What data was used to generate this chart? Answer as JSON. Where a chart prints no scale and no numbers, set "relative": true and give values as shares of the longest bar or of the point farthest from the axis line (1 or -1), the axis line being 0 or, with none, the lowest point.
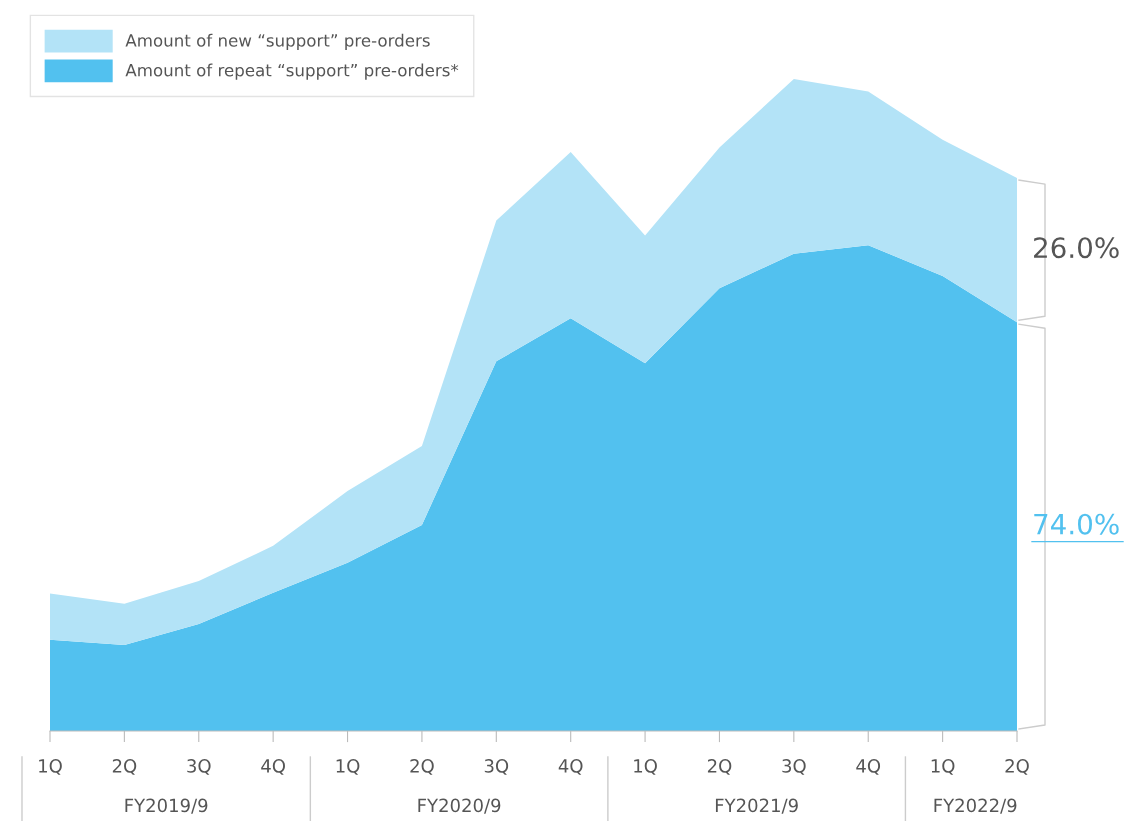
{
  "chart_data": {
    "type": "area",
    "stacked": true,
    "relative": true,
    "legend": "top left",
    "grid": false,
    "categories": [
      "1Q",
      "2Q",
      "3Q",
      "4Q",
      "1Q",
      "2Q",
      "3Q",
      "4Q",
      "1Q",
      "2Q",
      "3Q",
      "4Q",
      "1Q",
      "2Q"
    ],
    "series": [
      {
        "name": "Amount of repeat “support” pre-orders*",
        "color": "#52c1ef",
        "values": [
          0.14,
          0.132,
          0.164,
          0.212,
          0.258,
          0.316,
          0.567,
          0.633,
          0.564,
          0.679,
          0.732,
          0.745,
          0.698,
          0.627
        ]
      },
      {
        "name": "Amount of new “support” pre-orders",
        "color": "#b3e3f7",
        "values": [
          0.071,
          0.063,
          0.066,
          0.072,
          0.11,
          0.121,
          0.216,
          0.255,
          0.196,
          0.216,
          0.268,
          0.236,
          0.209,
          0.221
        ]
      }
    ],
    "annotations": [
      "FY2019/9",
      "FY2020/9",
      "FY2021/9",
      "FY2022/9",
      "74.0%",
      "26.0%"
    ]
  }
}
